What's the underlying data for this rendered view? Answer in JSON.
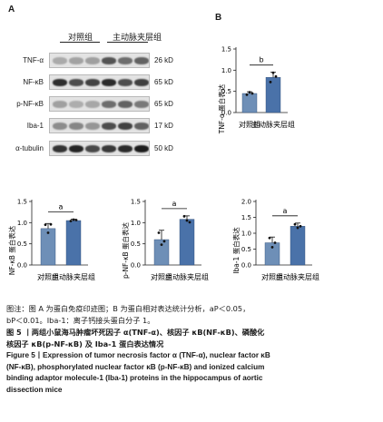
{
  "panels": {
    "a": "A",
    "b": "B"
  },
  "blot": {
    "group_control": "对照组",
    "group_model": "主动脉夹层组",
    "proteins": [
      "TNF-α",
      "NF-κB",
      "p-NF-κB",
      "Iba-1",
      "α-tubulin"
    ],
    "sizes": [
      "26 kD",
      "65 kD",
      "65 kD",
      "17 kD",
      "50 kD"
    ],
    "intensity_control": [
      0.32,
      0.78,
      0.3,
      0.4,
      0.85
    ],
    "intensity_model": [
      0.62,
      0.82,
      0.55,
      0.72,
      0.86
    ]
  },
  "chart_data": [
    {
      "type": "bar",
      "ylabel": "TNF-α 蛋白表达",
      "categories": [
        "对照组",
        "主动脉夹层组"
      ],
      "values": [
        0.45,
        0.83
      ],
      "errors": [
        0.04,
        0.12
      ],
      "points": [
        [
          0.42,
          0.48,
          0.45
        ],
        [
          0.72,
          0.94,
          0.85
        ]
      ],
      "ylim": [
        0,
        1.5
      ],
      "yticks": [
        "0.0",
        "0.5",
        "1.0",
        "1.5"
      ],
      "significance": "b",
      "bar_color_control": "#6e8fb7",
      "bar_color_model": "#4a72a9"
    },
    {
      "type": "bar",
      "ylabel": "NF-κB 蛋白表达",
      "categories": [
        "对照组",
        "主动脉夹层组"
      ],
      "values": [
        0.86,
        1.05
      ],
      "errors": [
        0.12,
        0.03
      ],
      "points": [
        [
          0.95,
          0.76,
          0.96
        ],
        [
          1.04,
          1.07,
          1.06
        ]
      ],
      "ylim": [
        0,
        1.5
      ],
      "yticks": [
        "0.0",
        "0.5",
        "1.0",
        "1.5"
      ],
      "significance": "a",
      "bar_color_control": "#6e8fb7",
      "bar_color_model": "#4a72a9"
    },
    {
      "type": "bar",
      "ylabel": "p-NF-κB 蛋白表达",
      "categories": [
        "对照组",
        "主动脉夹层组"
      ],
      "values": [
        0.6,
        1.08
      ],
      "errors": [
        0.22,
        0.08
      ],
      "points": [
        [
          0.76,
          0.48,
          0.56
        ],
        [
          1.15,
          1.05,
          1.01
        ]
      ],
      "ylim": [
        0,
        1.5
      ],
      "yticks": [
        "0.0",
        "0.5",
        "1.0",
        "1.5"
      ],
      "significance": "a",
      "bar_color_control": "#6e8fb7",
      "bar_color_model": "#4a72a9"
    },
    {
      "type": "bar",
      "ylabel": "Iba-1 蛋白表达",
      "categories": [
        "对照组",
        "主动脉夹层组"
      ],
      "values": [
        0.7,
        1.22
      ],
      "errors": [
        0.18,
        0.1
      ],
      "points": [
        [
          0.85,
          0.56,
          0.7
        ],
        [
          1.28,
          1.17,
          1.22
        ]
      ],
      "ylim": [
        0,
        2.0
      ],
      "yticks": [
        "0.0",
        "0.5",
        "1.0",
        "1.5",
        "2.0"
      ],
      "significance": "a",
      "bar_color_control": "#6e8fb7",
      "bar_color_model": "#4a72a9"
    }
  ],
  "caption": {
    "note_line1": "图注：图 A 为蛋白免疫印迹图；B 为蛋白相对表达统计分析，aP＜0.05，",
    "note_line2": "bP＜0.01。Iba-1：离子钙接头蛋白分子 1。",
    "title_cn_line1": "图 5 丨两组小鼠海马肿瘤坏死因子 α(TNF-α)、核因子 κB(NF-κB)、磷酸化",
    "title_cn_line2": "核因子 κB(p-NF-κB) 及 Iba-1 蛋白表达情况",
    "title_en_line1": "Figure 5丨Expression of tumor necrosis factor α (TNF-α), nuclear factor κB",
    "title_en_line2": "(NF-κB), phosphorylated nuclear factor κB (p-NF-κB) and ionized calcium",
    "title_en_line3": "binding adaptor molecule-1 (Iba-1) proteins in the hippocampus of aortic",
    "title_en_line4": "dissection mice"
  }
}
